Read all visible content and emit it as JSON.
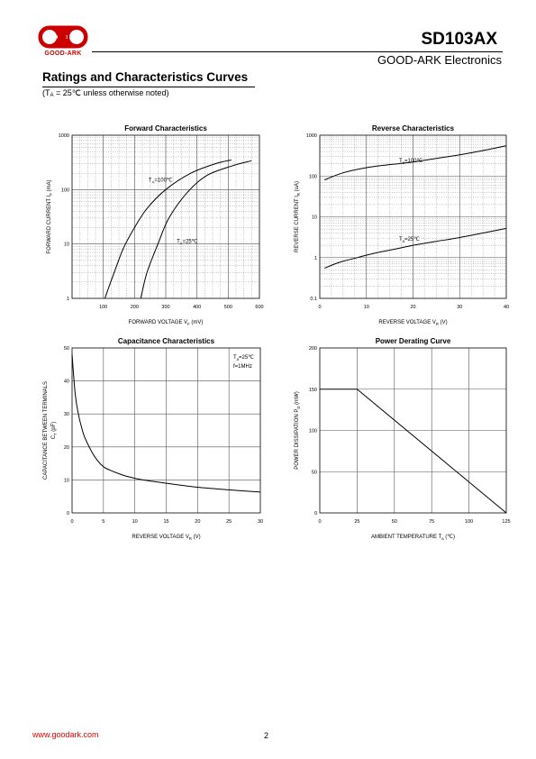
{
  "header": {
    "part_number": "SD103AX",
    "company": "GOOD-ARK Electronics",
    "logo_text": "GOOD-ARK",
    "brand_color": "#cc0000"
  },
  "section": {
    "title": "Ratings and Characteristics Curves",
    "note_prefix": "(T",
    "note_sub": "A",
    "note_suffix": " = 25℃ unless otherwise noted)"
  },
  "footer": {
    "url": "www.goodark.com",
    "page_number": "2"
  },
  "chart_data": [
    {
      "type": "line",
      "title": "Forward    Characteristics",
      "xlabel": "FORWARD VOLTAGE    V",
      "xlabel_sub": "F",
      "xlabel_unit": "(mV)",
      "ylabel": "FORWARD CURRENT    I",
      "ylabel_sub": "F",
      "ylabel_unit": "(mA)",
      "xlim": [
        0,
        600
      ],
      "ylim": [
        1,
        1000
      ],
      "yscale": "log",
      "xticks": [
        100,
        200,
        300,
        400,
        500,
        600
      ],
      "yticks": [
        1,
        10,
        100,
        1000
      ],
      "ytick_labels": [
        "1",
        "10",
        "100",
        "1000"
      ],
      "grid": true,
      "series": [
        {
          "label_main": "T",
          "label_sub": "A",
          "label_rest": "=100℃",
          "label_at": [
            245,
            140
          ],
          "points": [
            [
              105,
              1
            ],
            [
              135,
              3
            ],
            [
              165,
              8.5
            ],
            [
              200,
              20
            ],
            [
              240,
              45
            ],
            [
              300,
              100
            ],
            [
              380,
              200
            ],
            [
              460,
              300
            ],
            [
              510,
              350
            ]
          ]
        },
        {
          "label_main": "T",
          "label_sub": "A",
          "label_rest": "=25℃",
          "label_at": [
            335,
            10.5
          ],
          "points": [
            [
              220,
              1
            ],
            [
              240,
              3
            ],
            [
              275,
              10
            ],
            [
              310,
              30
            ],
            [
              370,
              90
            ],
            [
              430,
              180
            ],
            [
              510,
              270
            ],
            [
              575,
              340
            ]
          ]
        }
      ]
    },
    {
      "type": "line",
      "title": "Reverse    Characteristics",
      "xlabel": "REVERSE VOLTAGE    V",
      "xlabel_sub": "R",
      "xlabel_unit": "(V)",
      "ylabel": "REVERSE CURRENT   I",
      "ylabel_sub": "R",
      "ylabel_unit": "(uA)",
      "xlim": [
        0,
        40
      ],
      "ylim": [
        0.1,
        1000
      ],
      "yscale": "log",
      "xticks": [
        0,
        10,
        20,
        30,
        40
      ],
      "yticks": [
        0.1,
        1,
        10,
        100,
        1000
      ],
      "ytick_labels": [
        "0.1",
        "1",
        "10",
        "100",
        "1000"
      ],
      "grid": true,
      "series": [
        {
          "label_main": "T",
          "label_sub": "a",
          "label_rest": "=100℃",
          "label_at": [
            17,
            220
          ],
          "points": [
            [
              1,
              80
            ],
            [
              5,
              120
            ],
            [
              10,
              160
            ],
            [
              15,
              190
            ],
            [
              20,
              220
            ],
            [
              25,
              270
            ],
            [
              30,
              330
            ],
            [
              35,
              420
            ],
            [
              40,
              550
            ]
          ]
        },
        {
          "label_main": "T",
          "label_sub": "a",
          "label_rest": "=25℃",
          "label_at": [
            17,
            2.6
          ],
          "points": [
            [
              1,
              0.55
            ],
            [
              4,
              0.75
            ],
            [
              8,
              1.0
            ],
            [
              12,
              1.3
            ],
            [
              16,
              1.6
            ],
            [
              20,
              2.0
            ],
            [
              25,
              2.5
            ],
            [
              30,
              3.1
            ],
            [
              35,
              4.0
            ],
            [
              40,
              5.2
            ]
          ]
        }
      ]
    },
    {
      "type": "line",
      "title": "Capacitance Characteristics",
      "xlabel": "REVERSE VOLTAGE    V",
      "xlabel_sub": "R",
      "xlabel_unit": "(V)",
      "ylabel": "CAPACITANCE BETWEEN TERMINALS",
      "ylabel2": "C",
      "ylabel2_sub": "T",
      "ylabel2_unit": "(pF)",
      "xlim": [
        0,
        30
      ],
      "ylim": [
        0,
        50
      ],
      "xticks": [
        0,
        5,
        10,
        15,
        20,
        25,
        30
      ],
      "yticks": [
        0,
        10,
        20,
        30,
        40,
        50
      ],
      "ytick_labels": [
        "0",
        "10",
        "20",
        "30",
        "40",
        "50"
      ],
      "grid": true,
      "annotation_line1_main": "T",
      "annotation_line1_sub": "a",
      "annotation_line1_rest": "=25℃",
      "annotation_line2": "f=1MHz",
      "series": [
        {
          "points": [
            [
              0,
              48
            ],
            [
              0.5,
              36
            ],
            [
              1,
              30
            ],
            [
              1.5,
              26
            ],
            [
              2,
              23
            ],
            [
              3,
              19
            ],
            [
              4,
              16
            ],
            [
              5,
              14
            ],
            [
              6,
              13
            ],
            [
              8,
              11.5
            ],
            [
              10,
              10.5
            ],
            [
              12,
              9.8
            ],
            [
              15,
              9
            ],
            [
              20,
              7.8
            ],
            [
              25,
              7
            ],
            [
              30,
              6.3
            ]
          ]
        }
      ]
    },
    {
      "type": "line",
      "title": "Power Derating Curve",
      "xlabel": "AMBIENT TEMPERATURE    T",
      "xlabel_sub": "a",
      "xlabel_unit": "(℃)",
      "ylabel": "POWER DISSIPATION    P",
      "ylabel_sub": "D",
      "ylabel_unit": "(mW)",
      "xlim": [
        0,
        125
      ],
      "ylim": [
        0,
        200
      ],
      "xticks": [
        0,
        25,
        50,
        75,
        100,
        125
      ],
      "yticks": [
        0,
        50,
        100,
        150,
        200
      ],
      "ytick_labels": [
        "0",
        "50",
        "100",
        "150",
        "200"
      ],
      "grid": true,
      "series": [
        {
          "points": [
            [
              0,
              150
            ],
            [
              25,
              150
            ],
            [
              125,
              0
            ]
          ]
        }
      ]
    }
  ]
}
